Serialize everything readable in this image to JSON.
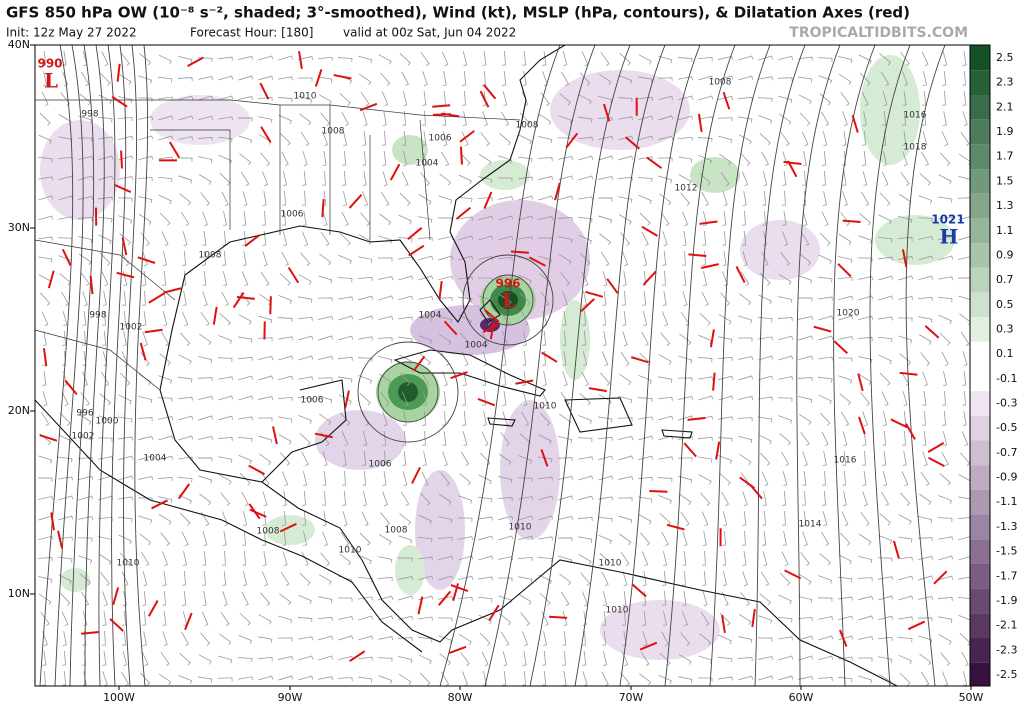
{
  "header": {
    "title": "GFS 850 hPa OW (10⁻⁸ s⁻², shaded; 3°-smoothed), Wind (kt), MSLP (hPa, contours), & Dilatation Axes (red)",
    "init": "Init: 12z May 27 2022",
    "forecast_hour": "Forecast Hour: [180]",
    "valid": "valid at 00z Sat, Jun 04 2022",
    "site": "TROPICALTIDBITS.COM"
  },
  "map": {
    "lat_labels": [
      "40N",
      "30N",
      "20N",
      "10N"
    ],
    "lon_labels": [
      "100W",
      "90W",
      "80W",
      "70W",
      "60W",
      "50W"
    ],
    "centers": [
      {
        "value": "990",
        "symbol": "L"
      },
      {
        "value": "996",
        "symbol": "L"
      },
      {
        "value": "1021",
        "symbol": "H"
      }
    ],
    "contour_labels": [
      "1010",
      "1008",
      "1006",
      "1004",
      "998",
      "1008",
      "1008",
      "1016",
      "1018",
      "1012",
      "1006",
      "1008",
      "998",
      "1002",
      "1004",
      "1004",
      "1020",
      "996",
      "1000",
      "1002",
      "1004",
      "1006",
      "1006",
      "1010",
      "1016",
      "1008",
      "1008",
      "1010",
      "1014",
      "1010",
      "1010",
      "1010",
      "1010"
    ]
  },
  "colorbar": {
    "labels": [
      "2.5",
      "2.3",
      "2.1",
      "1.9",
      "1.7",
      "1.5",
      "1.3",
      "1.1",
      "0.9",
      "0.7",
      "0.5",
      "0.3",
      "0.1",
      "-0.1",
      "-0.3",
      "-0.5",
      "-0.7",
      "-0.9",
      "-1.1",
      "-1.3",
      "-1.5",
      "-1.7",
      "-1.9",
      "-2.1",
      "-2.3",
      "-2.5"
    ]
  }
}
